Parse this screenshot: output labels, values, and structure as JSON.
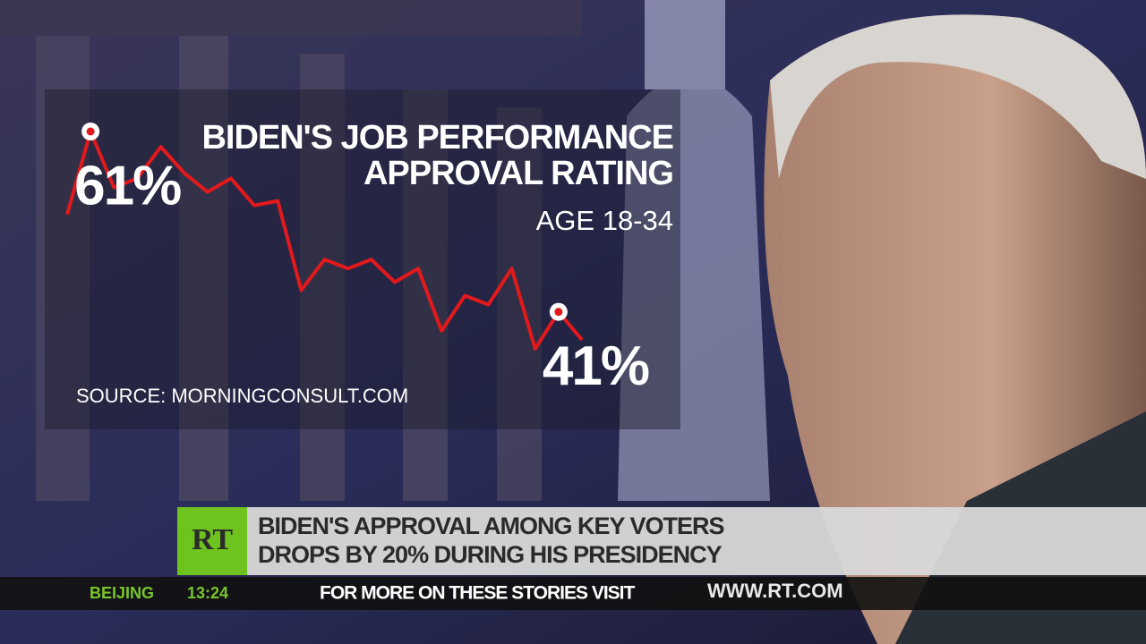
{
  "chart_data": {
    "type": "line",
    "title": [
      "BIDEN'S JOB PERFORMANCE",
      "APPROVAL RATING"
    ],
    "subtitle": "AGE 18-34",
    "source": "SOURCE: MORNINGCONSULT.COM",
    "color": "#e3191c",
    "values": [
      51.8,
      61,
      54.8,
      55.8,
      59.3,
      56.4,
      54.3,
      55.8,
      52.8,
      53.3,
      43.4,
      46.8,
      45.8,
      46.8,
      44.3,
      45.8,
      38.9,
      42.8,
      41.8,
      45.8,
      36.9,
      41,
      37.9
    ],
    "value_labels": [
      null,
      "61%",
      null,
      null,
      null,
      null,
      null,
      null,
      null,
      null,
      null,
      null,
      null,
      null,
      null,
      null,
      null,
      null,
      null,
      null,
      null,
      "41%",
      null
    ]
  },
  "lower_third": {
    "logo": "RT",
    "headline": [
      "BIDEN'S APPROVAL AMONG KEY VOTERS",
      "DROPS BY 20% DURING HIS PRESIDENCY"
    ]
  },
  "ticker": {
    "city": "BEIJING",
    "time": "13:24",
    "message": "FOR MORE ON THESE STORIES VISIT",
    "url": "WWW.RT.COM"
  }
}
